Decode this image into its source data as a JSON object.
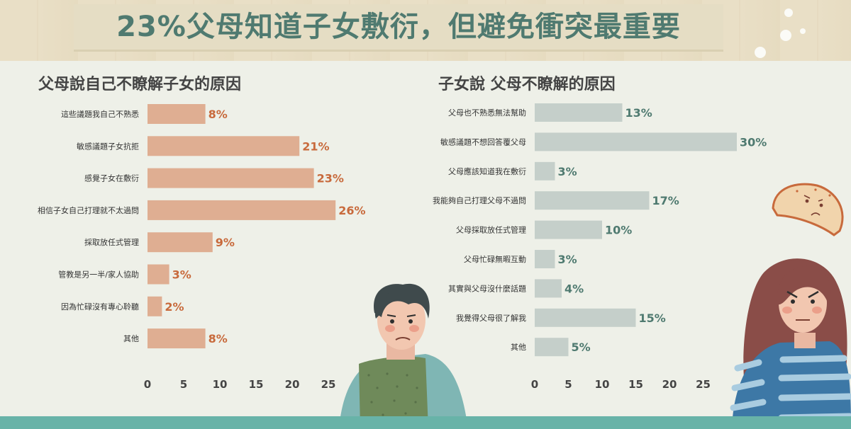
{
  "page": {
    "title": "23%父母知道子女敷衍，但避免衝突最重要",
    "colors": {
      "left_bar": "#dfae92",
      "left_value": "#c86a3c",
      "right_bar": "#c5cfca",
      "right_value": "#4f7a70",
      "heading": "#444444"
    }
  },
  "chart_data": [
    {
      "type": "bar",
      "orientation": "horizontal",
      "title": "父母說自己不瞭解子女的原因",
      "categories": [
        "這些議題我自己不熟悉",
        "敏感議題子女抗拒",
        "感覺子女在敷衍",
        "相信子女自己打理就不太過問",
        "採取放任式管理",
        "管教是另一半/家人協助",
        "因為忙碌沒有專心聆聽",
        "其他"
      ],
      "values": [
        8,
        21,
        23,
        26,
        9,
        3,
        2,
        8
      ],
      "value_labels": [
        "8%",
        "21%",
        "23%",
        "26%",
        "9%",
        "3%",
        "2%",
        "8%"
      ],
      "xlim": [
        0,
        26
      ],
      "xticks": [
        "0",
        "5",
        "10",
        "15",
        "20",
        "25"
      ],
      "xtick_values": [
        0,
        5,
        10,
        15,
        20,
        25
      ],
      "grid": false
    },
    {
      "type": "bar",
      "orientation": "horizontal",
      "title": "子女說 父母不瞭解的原因",
      "categories": [
        "父母也不熟悉無法幫助",
        "敏感議題不想回答覆父母",
        "父母應該知道我在敷衍",
        "我能夠自己打理父母不過問",
        "父母採取放任式管理",
        "父母忙碌無暇互動",
        "其實與父母沒什麼話題",
        "我覺得父母很了解我",
        "其他"
      ],
      "values": [
        13,
        30,
        3,
        17,
        10,
        3,
        4,
        15,
        5
      ],
      "value_labels": [
        "13%",
        "30%",
        "3%",
        "17%",
        "10%",
        "3%",
        "4%",
        "15%",
        "5%"
      ],
      "xlim": [
        0,
        26
      ],
      "xticks": [
        "0",
        "5",
        "10",
        "15",
        "20",
        "25"
      ],
      "xtick_values": [
        0,
        5,
        10,
        15,
        20,
        25
      ],
      "grid": false
    }
  ]
}
